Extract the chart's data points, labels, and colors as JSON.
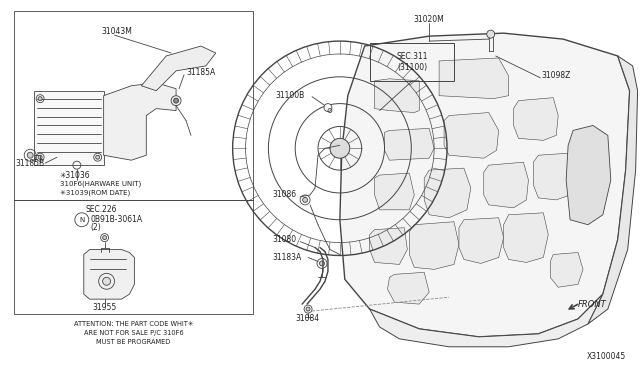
{
  "bg_color": "#ffffff",
  "line_color": "#444444",
  "text_color": "#222222",
  "diagram_id": "X3100045",
  "attention_lines": [
    "ATTENTION: THE PART CODE WHIT✳",
    "ARE NOT FOR SALE P/C 310F6",
    "MUST BE PROGRAMED"
  ],
  "figsize": [
    6.4,
    3.72
  ],
  "dpi": 100
}
